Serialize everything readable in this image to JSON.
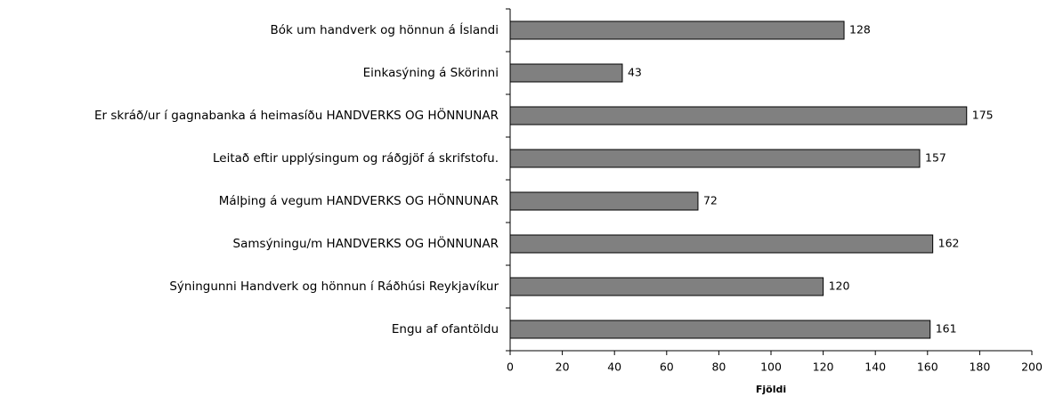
{
  "chart_data": {
    "type": "bar",
    "orientation": "horizontal",
    "xlabel": "Fjöldi",
    "categories": [
      "Bók um handverk og hönnun á Íslandi",
      "Einkasýning á Skörinni",
      "Er skráð/ur í gagnabanka á heimasíðu HANDVERKS OG HÖNNUNAR",
      "Leitað eftir upplýsingum og ráðgjöf á skrifstofu.",
      "Málþing á vegum HANDVERKS OG HÖNNUNAR",
      "Samsýningu/m HANDVERKS OG HÖNNUNAR",
      "Sýningunni Handverk og hönnun í Ráðhúsi Reykjavíkur",
      "Engu af ofantöldu"
    ],
    "values": [
      128,
      43,
      175,
      157,
      72,
      162,
      120,
      161
    ],
    "color": "#808080",
    "xlim": [
      0,
      200
    ],
    "xticks": [
      0,
      20,
      40,
      60,
      80,
      100,
      120,
      140,
      160,
      180,
      200
    ],
    "grid": false
  }
}
